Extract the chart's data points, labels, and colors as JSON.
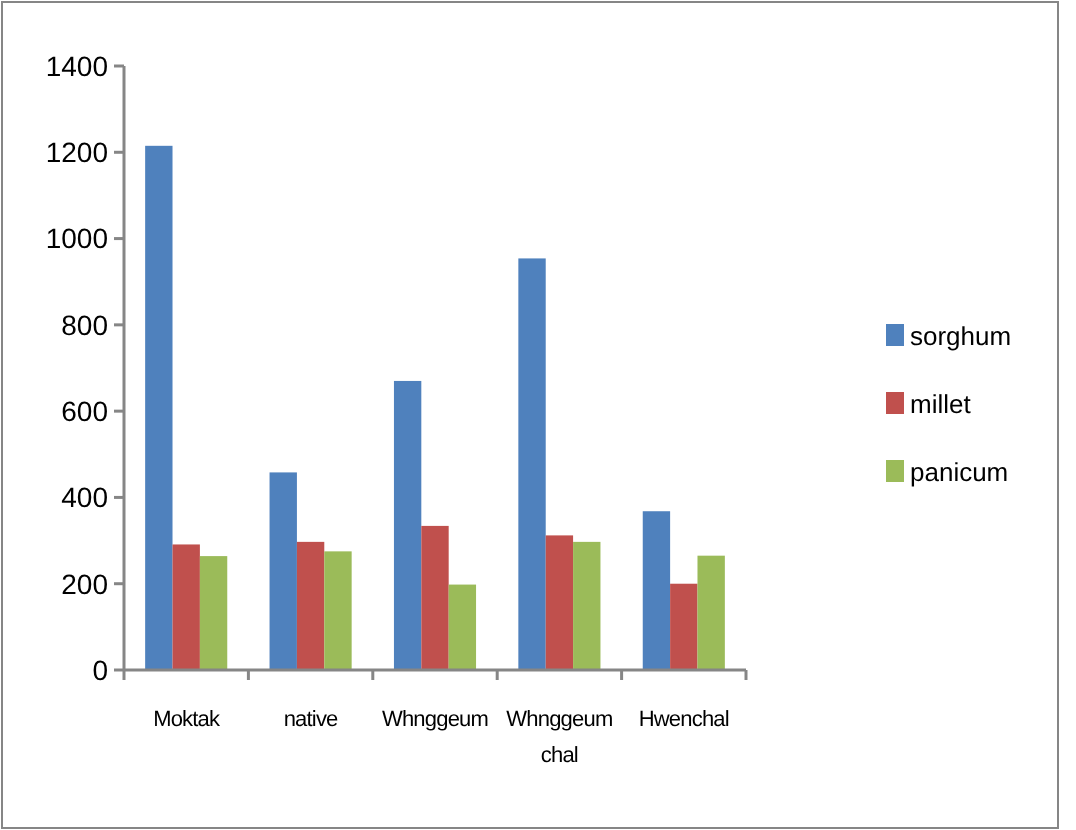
{
  "chart_data": {
    "type": "bar",
    "categories": [
      "Moktak",
      "native",
      "Whnggeum",
      "Whnggeum chal",
      "Hwenchal"
    ],
    "series": [
      {
        "name": "sorghum",
        "color": "#4f81bd",
        "values": [
          1215,
          458,
          670,
          954,
          368
        ]
      },
      {
        "name": "millet",
        "color": "#c0504d",
        "values": [
          291,
          297,
          334,
          312,
          200
        ]
      },
      {
        "name": "panicum",
        "color": "#9bbb59",
        "values": [
          264,
          275,
          198,
          297,
          265
        ]
      }
    ],
    "ylim": [
      0,
      1400
    ],
    "yticks": [
      0,
      200,
      400,
      600,
      800,
      1000,
      1200,
      1400
    ],
    "grid": false,
    "legend": "right"
  }
}
